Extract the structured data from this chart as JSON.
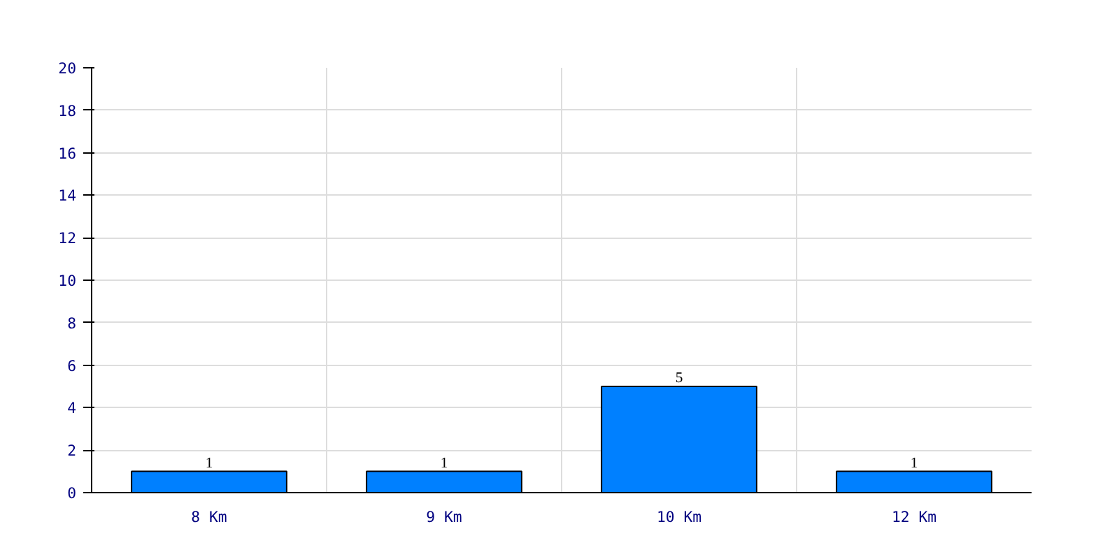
{
  "chart_data": {
    "type": "bar",
    "categories": [
      "8 Km",
      "9 Km",
      "10 Km",
      "12 Km"
    ],
    "values": [
      1,
      1,
      5,
      1
    ],
    "color": "#0080ff",
    "ylim": [
      0,
      20
    ],
    "yticks": [
      0,
      2,
      4,
      6,
      8,
      10,
      12,
      14,
      16,
      18,
      20
    ],
    "grid": true,
    "data_labels": true
  }
}
